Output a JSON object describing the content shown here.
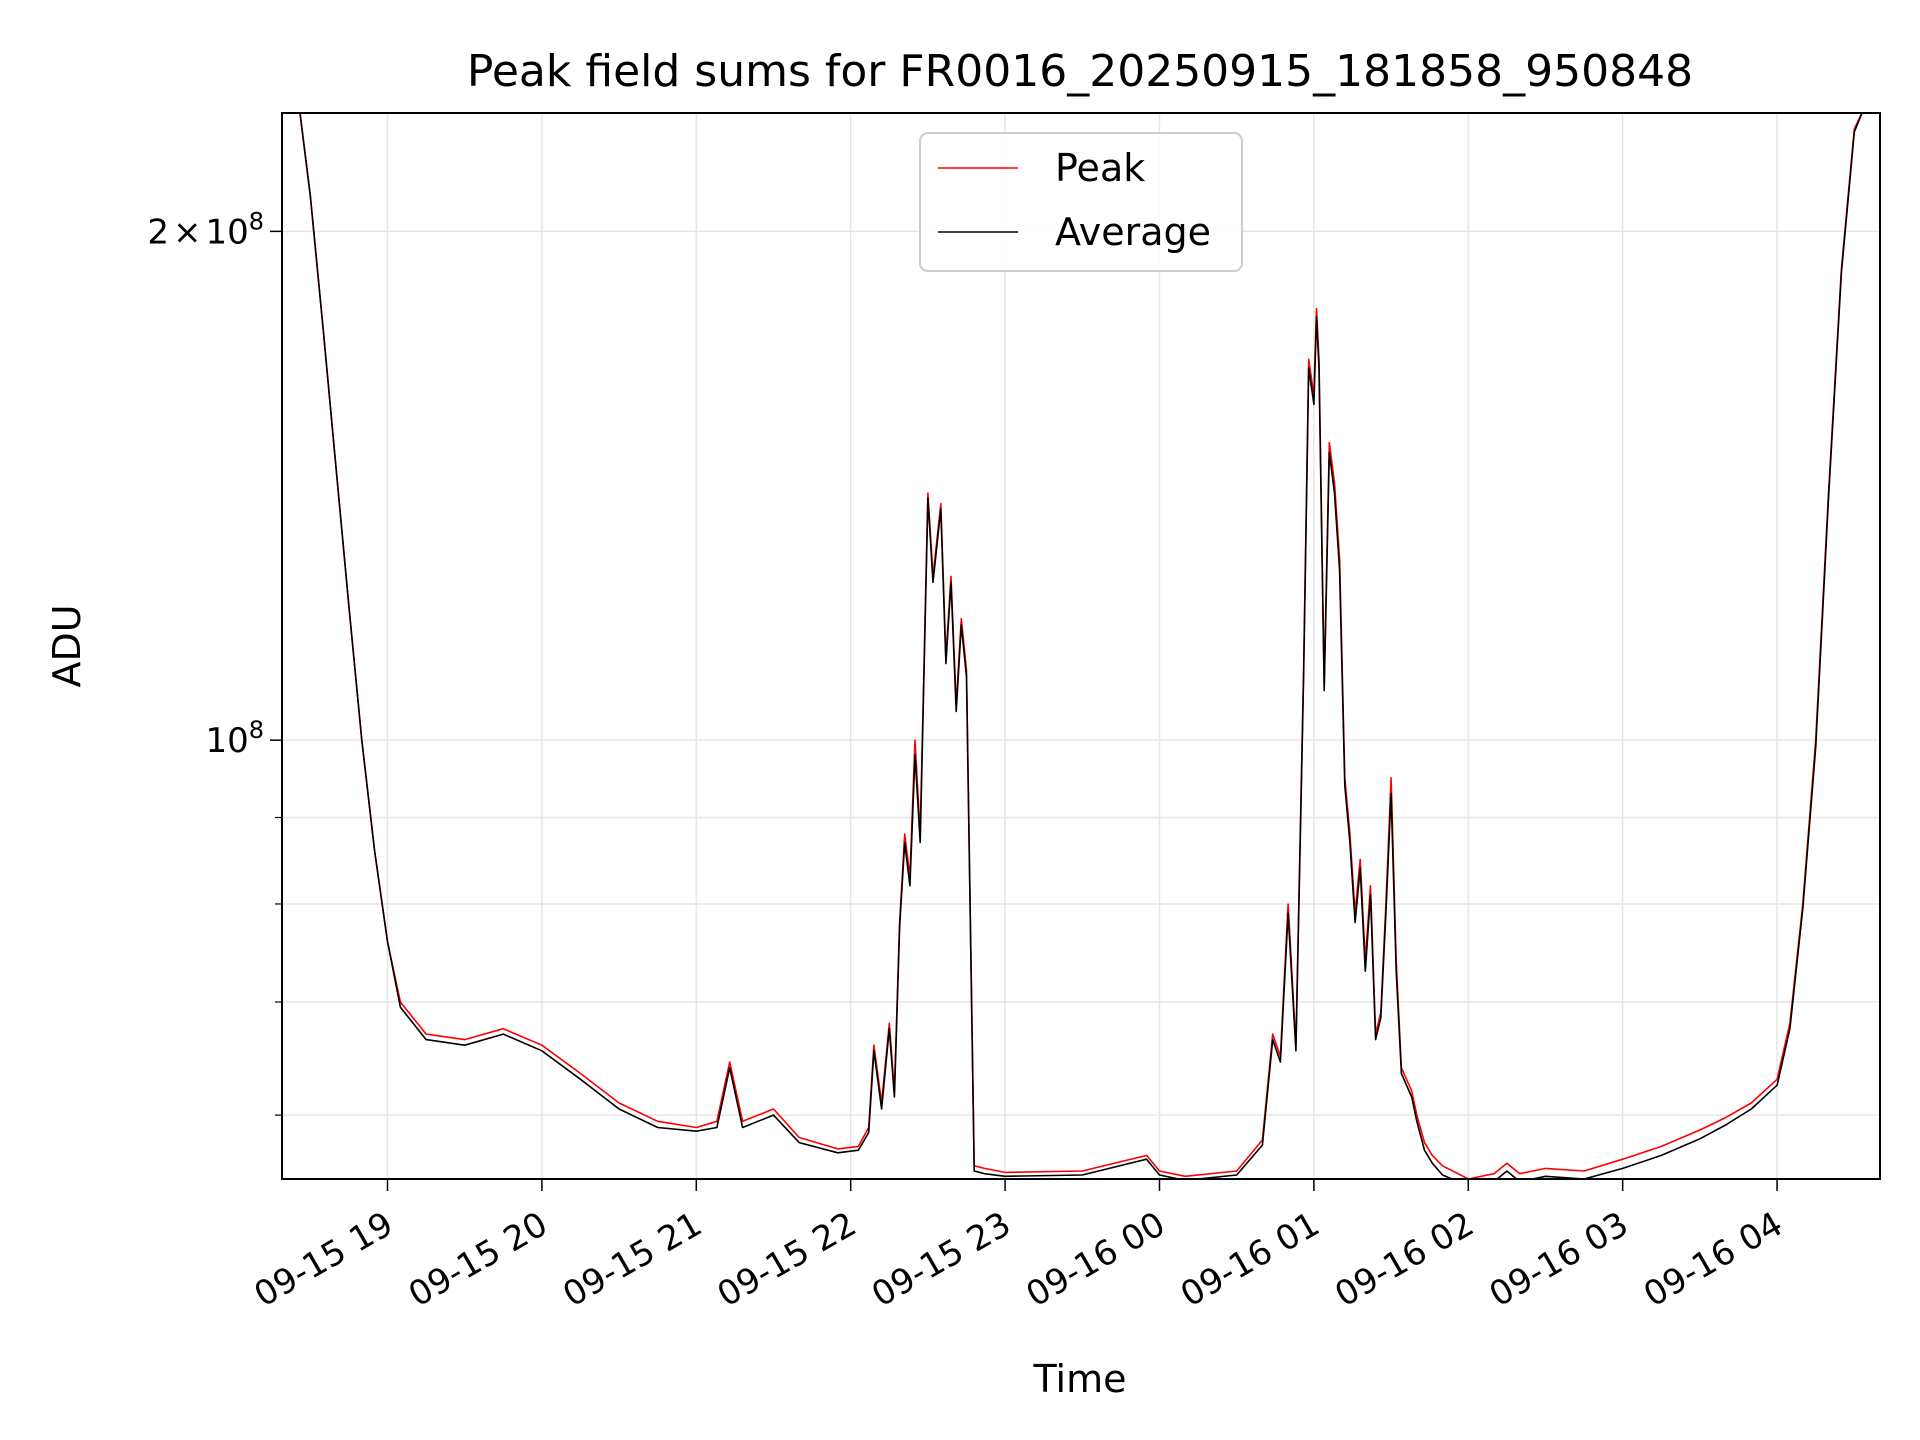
{
  "chart_data": {
    "type": "line",
    "title": "Peak field sums for FR0016_20250915_181858_950848",
    "xlabel": "Time",
    "ylabel": "ADU",
    "yscale": "log",
    "xlim": [
      "2025-09-15 18:19",
      "2025-09-16 04:40"
    ],
    "ylim": [
      55000000,
      235000000
    ],
    "x_ticks": [
      "09-15 19",
      "09-15 20",
      "09-15 21",
      "09-15 22",
      "09-15 23",
      "09-16 00",
      "09-16 01",
      "09-16 02",
      "09-16 03",
      "09-16 04"
    ],
    "y_ticks": [
      {
        "value": 200000000,
        "mantissa": "2",
        "times": "×",
        "base": "10",
        "exp": "8"
      },
      {
        "value": 100000000,
        "mantissa": "",
        "times": "",
        "base": "10",
        "exp": "8"
      }
    ],
    "y_minor_ticks": [
      60000000,
      70000000,
      80000000,
      90000000
    ],
    "grid": true,
    "legend": {
      "position": "top-center"
    },
    "series": [
      {
        "name": "Peak",
        "color": "#ff0000",
        "x": [
          "2025-09-15 18:19",
          "2025-09-15 18:26",
          "2025-09-15 18:30",
          "2025-09-15 18:35",
          "2025-09-15 18:40",
          "2025-09-15 18:45",
          "2025-09-15 18:50",
          "2025-09-15 18:55",
          "2025-09-15 19:00",
          "2025-09-15 19:05",
          "2025-09-15 19:15",
          "2025-09-15 19:30",
          "2025-09-15 19:45",
          "2025-09-15 20:00",
          "2025-09-15 20:15",
          "2025-09-15 20:30",
          "2025-09-15 20:45",
          "2025-09-15 21:00",
          "2025-09-15 21:08",
          "2025-09-15 21:13",
          "2025-09-15 21:18",
          "2025-09-15 21:30",
          "2025-09-15 21:40",
          "2025-09-15 21:55",
          "2025-09-15 22:03",
          "2025-09-15 22:07",
          "2025-09-15 22:09",
          "2025-09-15 22:12",
          "2025-09-15 22:15",
          "2025-09-15 22:17",
          "2025-09-15 22:19",
          "2025-09-15 22:21",
          "2025-09-15 22:23",
          "2025-09-15 22:25",
          "2025-09-15 22:27",
          "2025-09-15 22:30",
          "2025-09-15 22:32",
          "2025-09-15 22:35",
          "2025-09-15 22:37",
          "2025-09-15 22:39",
          "2025-09-15 22:41",
          "2025-09-15 22:43",
          "2025-09-15 22:45",
          "2025-09-15 22:48",
          "2025-09-15 22:52",
          "2025-09-15 23:00",
          "2025-09-15 23:30",
          "2025-09-15 23:55",
          "2025-09-16 00:00",
          "2025-09-16 00:10",
          "2025-09-16 00:30",
          "2025-09-16 00:40",
          "2025-09-16 00:44",
          "2025-09-16 00:47",
          "2025-09-16 00:50",
          "2025-09-16 00:53",
          "2025-09-16 00:56",
          "2025-09-16 00:58",
          "2025-09-16 01:00",
          "2025-09-16 01:01",
          "2025-09-16 01:02",
          "2025-09-16 01:04",
          "2025-09-16 01:06",
          "2025-09-16 01:08",
          "2025-09-16 01:10",
          "2025-09-16 01:12",
          "2025-09-16 01:14",
          "2025-09-16 01:16",
          "2025-09-16 01:18",
          "2025-09-16 01:20",
          "2025-09-16 01:22",
          "2025-09-16 01:24",
          "2025-09-16 01:26",
          "2025-09-16 01:28",
          "2025-09-16 01:30",
          "2025-09-16 01:32",
          "2025-09-16 01:34",
          "2025-09-16 01:36",
          "2025-09-16 01:38",
          "2025-09-16 01:40",
          "2025-09-16 01:43",
          "2025-09-16 01:46",
          "2025-09-16 01:50",
          "2025-09-16 02:00",
          "2025-09-16 02:10",
          "2025-09-16 02:15",
          "2025-09-16 02:20",
          "2025-09-16 02:30",
          "2025-09-16 02:45",
          "2025-09-16 03:00",
          "2025-09-16 03:15",
          "2025-09-16 03:30",
          "2025-09-16 03:40",
          "2025-09-16 03:50",
          "2025-09-16 04:00",
          "2025-09-16 04:05",
          "2025-09-16 04:10",
          "2025-09-16 04:15",
          "2025-09-16 04:20",
          "2025-09-16 04:25",
          "2025-09-16 04:30",
          "2025-09-16 04:33",
          "2025-09-16 04:40"
        ],
        "y": [
          235000000,
          235000000,
          210000000,
          175000000,
          145000000,
          120000000,
          100000000,
          86000000,
          76000000,
          70000000,
          67000000,
          66500000,
          67500000,
          66000000,
          63500000,
          61000000,
          59500000,
          59000000,
          59500000,
          64500000,
          59500000,
          60500000,
          58200000,
          57300000,
          57500000,
          59000000,
          66000000,
          61000000,
          68000000,
          62000000,
          78000000,
          88000000,
          83000000,
          100000000,
          88000000,
          140000000,
          125000000,
          138000000,
          112000000,
          125000000,
          105000000,
          118000000,
          110000000,
          56000000,
          55800000,
          55500000,
          55600000,
          56800000,
          55600000,
          55200000,
          55600000,
          58000000,
          67000000,
          65000000,
          80000000,
          66000000,
          110000000,
          168000000,
          160000000,
          180000000,
          168000000,
          108000000,
          150000000,
          142000000,
          128000000,
          95000000,
          88000000,
          79000000,
          85000000,
          74000000,
          82000000,
          67000000,
          69000000,
          80000000,
          95000000,
          74000000,
          64000000,
          63000000,
          62000000,
          60000000,
          57800000,
          56800000,
          56000000,
          55000000,
          55400000,
          56200000,
          55400000,
          55800000,
          55600000,
          56500000,
          57500000,
          58800000,
          59800000,
          61000000,
          63000000,
          68000000,
          80000000,
          100000000,
          140000000,
          190000000,
          230000000,
          235000000,
          235000000
        ]
      },
      {
        "name": "Average",
        "color": "#000000",
        "x": [
          "2025-09-15 18:19",
          "2025-09-15 18:26",
          "2025-09-15 18:30",
          "2025-09-15 18:35",
          "2025-09-15 18:40",
          "2025-09-15 18:45",
          "2025-09-15 18:50",
          "2025-09-15 18:55",
          "2025-09-15 19:00",
          "2025-09-15 19:05",
          "2025-09-15 19:15",
          "2025-09-15 19:30",
          "2025-09-15 19:45",
          "2025-09-15 20:00",
          "2025-09-15 20:15",
          "2025-09-15 20:30",
          "2025-09-15 20:45",
          "2025-09-15 21:00",
          "2025-09-15 21:08",
          "2025-09-15 21:13",
          "2025-09-15 21:18",
          "2025-09-15 21:30",
          "2025-09-15 21:40",
          "2025-09-15 21:55",
          "2025-09-15 22:03",
          "2025-09-15 22:07",
          "2025-09-15 22:09",
          "2025-09-15 22:12",
          "2025-09-15 22:15",
          "2025-09-15 22:17",
          "2025-09-15 22:19",
          "2025-09-15 22:21",
          "2025-09-15 22:23",
          "2025-09-15 22:25",
          "2025-09-15 22:27",
          "2025-09-15 22:30",
          "2025-09-15 22:32",
          "2025-09-15 22:35",
          "2025-09-15 22:37",
          "2025-09-15 22:39",
          "2025-09-15 22:41",
          "2025-09-15 22:43",
          "2025-09-15 22:45",
          "2025-09-15 22:48",
          "2025-09-15 22:52",
          "2025-09-15 23:00",
          "2025-09-15 23:30",
          "2025-09-15 23:55",
          "2025-09-16 00:00",
          "2025-09-16 00:10",
          "2025-09-16 00:30",
          "2025-09-16 00:40",
          "2025-09-16 00:44",
          "2025-09-16 00:47",
          "2025-09-16 00:50",
          "2025-09-16 00:53",
          "2025-09-16 00:56",
          "2025-09-16 00:58",
          "2025-09-16 01:00",
          "2025-09-16 01:01",
          "2025-09-16 01:02",
          "2025-09-16 01:04",
          "2025-09-16 01:06",
          "2025-09-16 01:08",
          "2025-09-16 01:10",
          "2025-09-16 01:12",
          "2025-09-16 01:14",
          "2025-09-16 01:16",
          "2025-09-16 01:18",
          "2025-09-16 01:20",
          "2025-09-16 01:22",
          "2025-09-16 01:24",
          "2025-09-16 01:26",
          "2025-09-16 01:28",
          "2025-09-16 01:30",
          "2025-09-16 01:32",
          "2025-09-16 01:34",
          "2025-09-16 01:36",
          "2025-09-16 01:38",
          "2025-09-16 01:40",
          "2025-09-16 01:43",
          "2025-09-16 01:46",
          "2025-09-16 01:50",
          "2025-09-16 02:00",
          "2025-09-16 02:10",
          "2025-09-16 02:15",
          "2025-09-16 02:20",
          "2025-09-16 02:30",
          "2025-09-16 02:45",
          "2025-09-16 03:00",
          "2025-09-16 03:15",
          "2025-09-16 03:30",
          "2025-09-16 03:40",
          "2025-09-16 03:50",
          "2025-09-16 04:00",
          "2025-09-16 04:05",
          "2025-09-16 04:10",
          "2025-09-16 04:15",
          "2025-09-16 04:20",
          "2025-09-16 04:25",
          "2025-09-16 04:30",
          "2025-09-16 04:33",
          "2025-09-16 04:40"
        ],
        "y": [
          235000000,
          235000000,
          210000000,
          175000000,
          145000000,
          120000000,
          100000000,
          86000000,
          76000000,
          69500000,
          66500000,
          66000000,
          67000000,
          65500000,
          63000000,
          60500000,
          59000000,
          58700000,
          59000000,
          64000000,
          59000000,
          60000000,
          57800000,
          57000000,
          57200000,
          58600000,
          65500000,
          60500000,
          67500000,
          61500000,
          77500000,
          87000000,
          82000000,
          98000000,
          87000000,
          139000000,
          124000000,
          137000000,
          111000000,
          124000000,
          104000000,
          117000000,
          109000000,
          55600000,
          55400000,
          55200000,
          55300000,
          56500000,
          55300000,
          54900000,
          55300000,
          57600000,
          66500000,
          64500000,
          79000000,
          65500000,
          109000000,
          166000000,
          158000000,
          178000000,
          166000000,
          107000000,
          148000000,
          140000000,
          126000000,
          94000000,
          87000000,
          78000000,
          84000000,
          73000000,
          81000000,
          66500000,
          68500000,
          79000000,
          93000000,
          73000000,
          63500000,
          62500000,
          61500000,
          59500000,
          57200000,
          56200000,
          55300000,
          54500000,
          54800000,
          55600000,
          54800000,
          55200000,
          55000000,
          55800000,
          56800000,
          58100000,
          59200000,
          60500000,
          62500000,
          67500000,
          79500000,
          99000000,
          139000000,
          189000000,
          229000000,
          235000000,
          235000000
        ]
      }
    ]
  }
}
